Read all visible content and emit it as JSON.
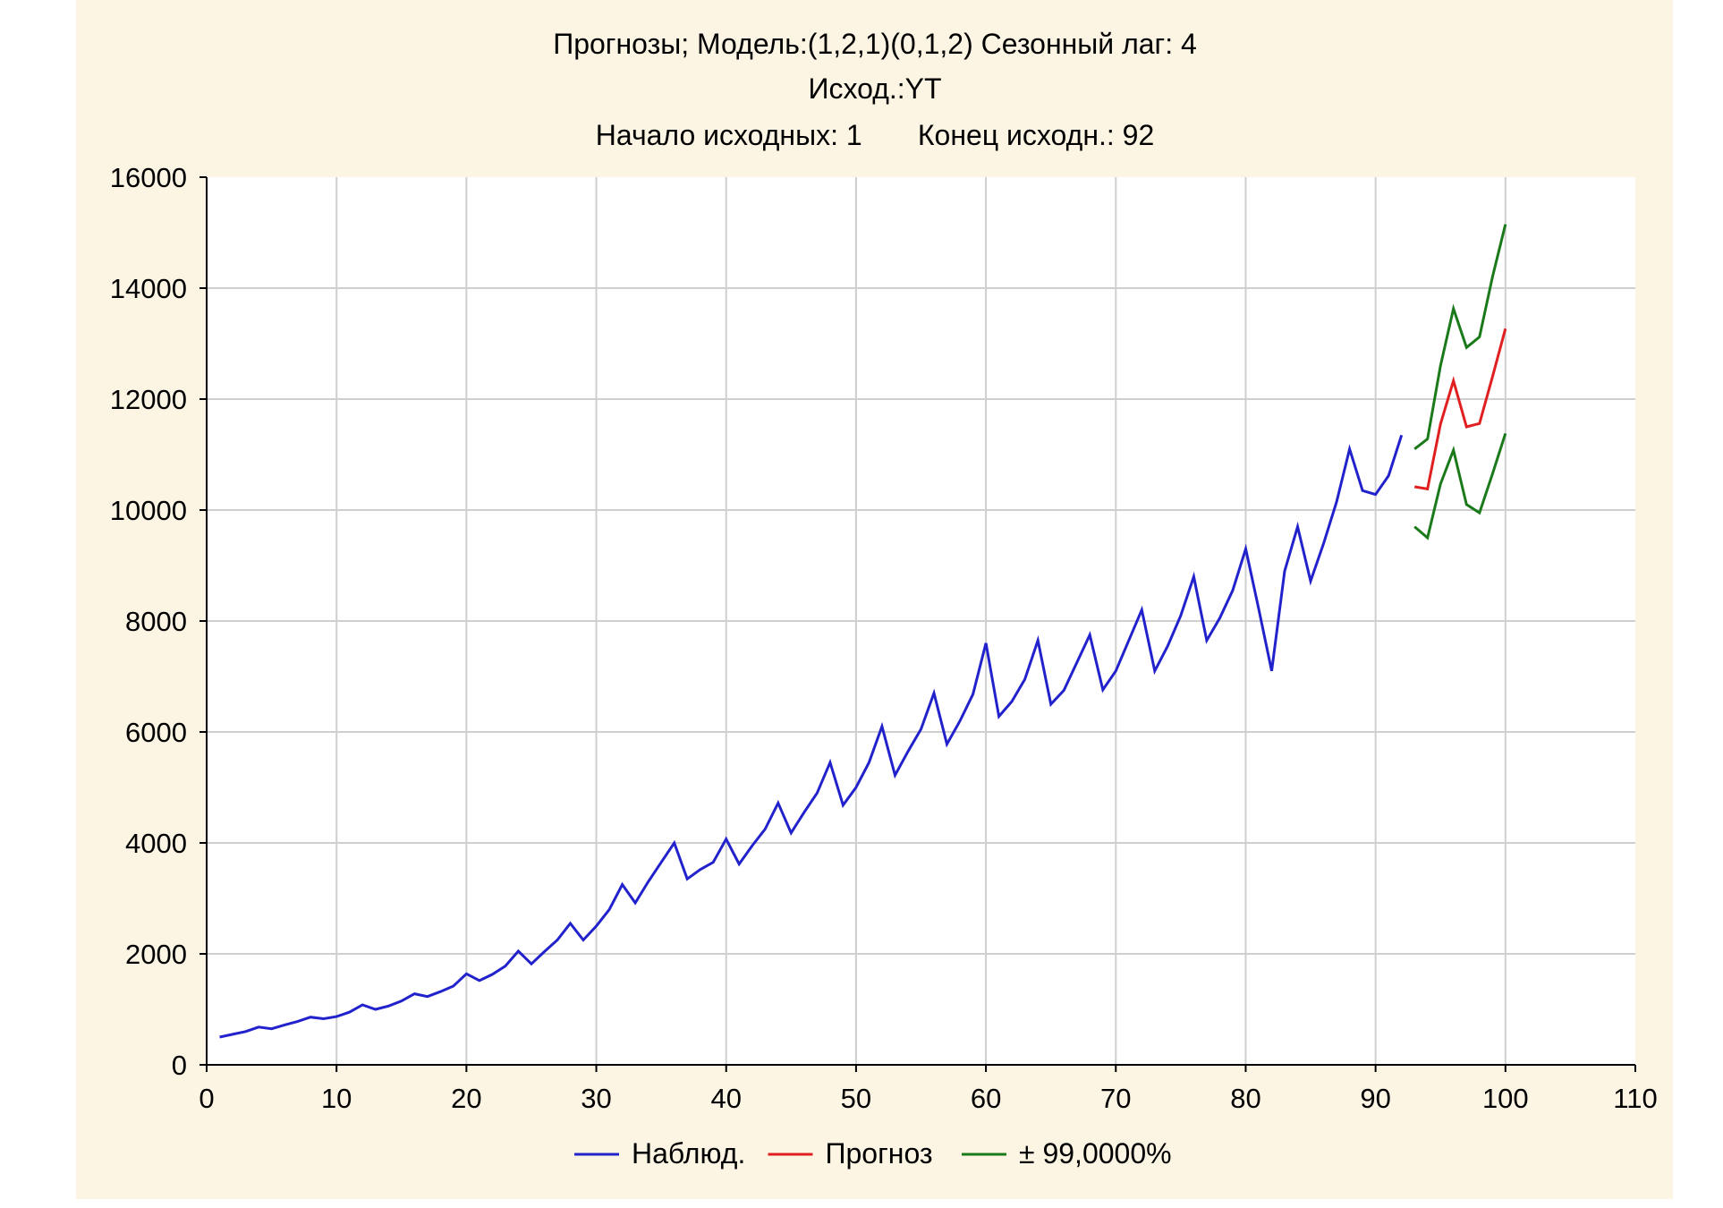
{
  "chart_data": {
    "type": "line",
    "title_lines": [
      "Прогнозы; Модель:(1,2,1)(0,1,2) Сезонный лаг: 4",
      "Исход.:YT",
      "Начало исходных: 1       Конец исходн.: 92"
    ],
    "xlabel": "",
    "ylabel": "",
    "xlim": [
      0,
      110
    ],
    "ylim": [
      0,
      16000
    ],
    "x_ticks": [
      "0",
      "10",
      "20",
      "30",
      "40",
      "50",
      "60",
      "70",
      "80",
      "90",
      "100",
      "110"
    ],
    "y_ticks": [
      "0",
      "2000",
      "4000",
      "6000",
      "8000",
      "10000",
      "12000",
      "14000",
      "16000"
    ],
    "x_tick_values": [
      0,
      10,
      20,
      30,
      40,
      50,
      60,
      70,
      80,
      90,
      100,
      110
    ],
    "y_tick_values": [
      0,
      2000,
      4000,
      6000,
      8000,
      10000,
      12000,
      14000,
      16000
    ],
    "grid": true,
    "legend_position": "bottom",
    "series": [
      {
        "name": "Наблюд.",
        "color": "#2222cc",
        "x": [
          1,
          2,
          3,
          4,
          5,
          6,
          7,
          8,
          9,
          10,
          11,
          12,
          13,
          14,
          15,
          16,
          17,
          18,
          19,
          20,
          21,
          22,
          23,
          24,
          25,
          26,
          27,
          28,
          29,
          30,
          31,
          32,
          33,
          34,
          35,
          36,
          37,
          38,
          39,
          40,
          41,
          42,
          43,
          44,
          45,
          46,
          47,
          48,
          49,
          50,
          51,
          52,
          53,
          54,
          55,
          56,
          57,
          58,
          59,
          60,
          61,
          62,
          63,
          64,
          65,
          66,
          67,
          68,
          69,
          70,
          71,
          72,
          73,
          74,
          75,
          76,
          77,
          78,
          79,
          80,
          81,
          82,
          83,
          84,
          85,
          86,
          87,
          88,
          89,
          90,
          91,
          92
        ],
        "y": [
          500,
          550,
          600,
          680,
          650,
          720,
          780,
          860,
          830,
          870,
          950,
          1080,
          1000,
          1060,
          1150,
          1280,
          1230,
          1320,
          1420,
          1640,
          1520,
          1630,
          1780,
          2050,
          1820,
          2040,
          2250,
          2550,
          2250,
          2500,
          2800,
          3250,
          2920,
          3300,
          3650,
          4000,
          3350,
          3520,
          3650,
          4070,
          3620,
          3950,
          4250,
          4720,
          4180,
          4550,
          4900,
          5450,
          4680,
          5000,
          5450,
          6100,
          5220,
          5650,
          6050,
          6700,
          5780,
          6200,
          6680,
          7600,
          6280,
          6550,
          6950,
          7650,
          6500,
          6750,
          7250,
          7750,
          6760,
          7100,
          7650,
          8200,
          7100,
          7550,
          8100,
          8800,
          7650,
          8050,
          8550,
          9300,
          8220,
          7100,
          8900,
          9700,
          8720,
          9400,
          10150,
          11100,
          10350,
          10280,
          10620,
          11350
        ]
      },
      {
        "name": "Прогноз",
        "color": "#e02020",
        "x": [
          93,
          94,
          95,
          96,
          97,
          98,
          99,
          100
        ],
        "y": [
          10420,
          10380,
          11550,
          12330,
          11500,
          11560,
          12400,
          13270
        ]
      },
      {
        "name": "± 99,0000%",
        "color": "#1a7a1a",
        "bands": [
          {
            "x": [
              93,
              94,
              95,
              96,
              97,
              98,
              99,
              100
            ],
            "y": [
              11100,
              11280,
              12600,
              13630,
              12930,
              13120,
              14200,
              15150
            ]
          },
          {
            "x": [
              93,
              94,
              95,
              96,
              97,
              98,
              99,
              100
            ],
            "y": [
              9700,
              9500,
              10470,
              11080,
              10100,
              9950,
              10650,
              11380
            ]
          }
        ]
      }
    ]
  }
}
